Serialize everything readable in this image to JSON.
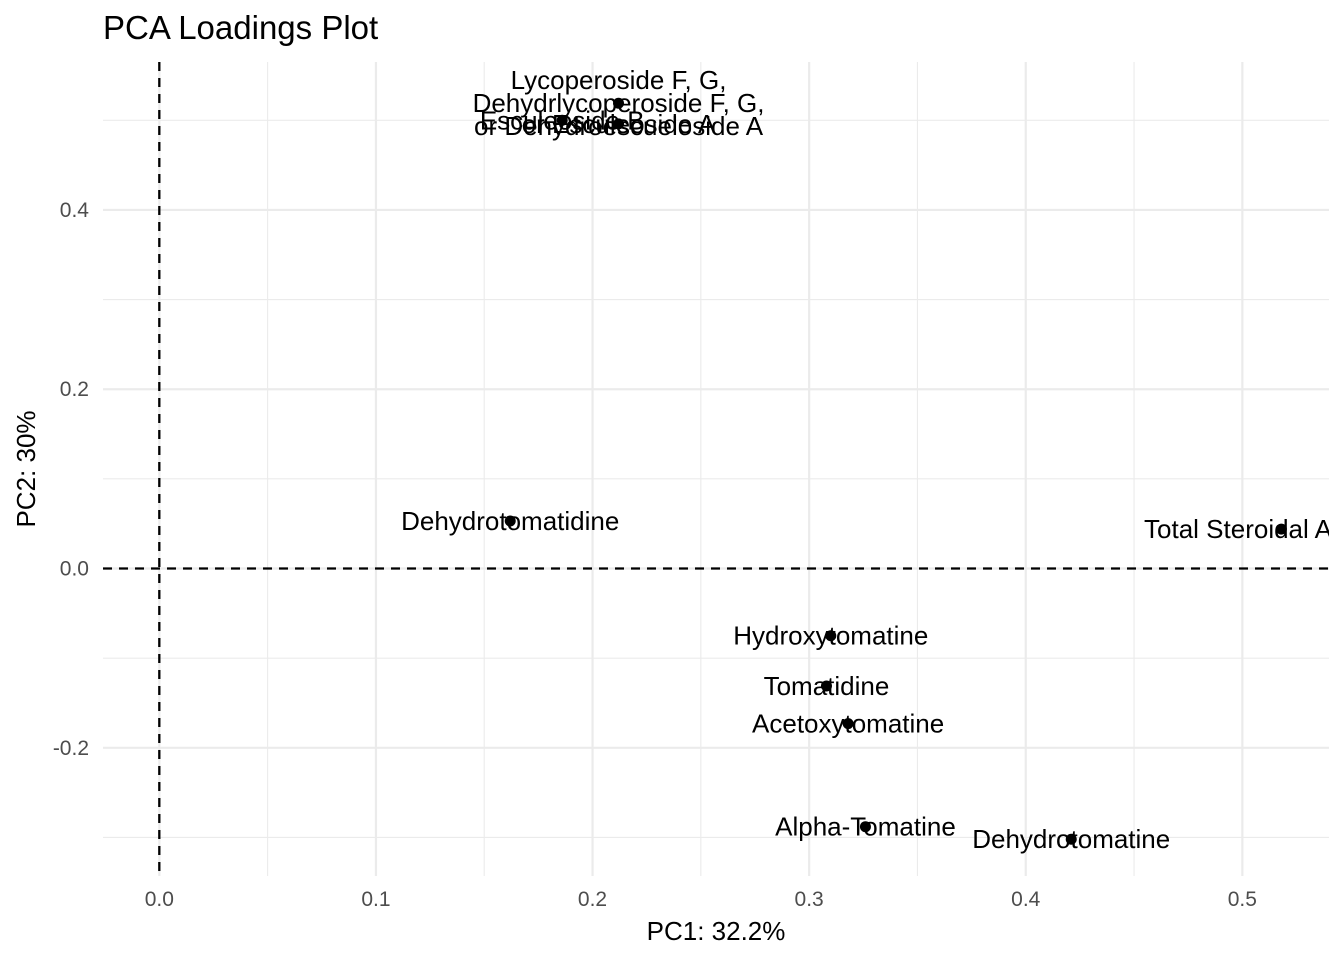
{
  "chart_data": {
    "type": "scatter",
    "title": "PCA Loadings Plot",
    "xlabel": "PC1: 32.2%",
    "ylabel": "PC2: 30%",
    "xlim": [
      -0.026,
      0.54
    ],
    "ylim": [
      -0.343,
      0.565
    ],
    "x_ticks": [
      0.0,
      0.1,
      0.2,
      0.3,
      0.4,
      0.5
    ],
    "x_tick_labels": [
      "0.0",
      "0.1",
      "0.2",
      "0.3",
      "0.4",
      "0.5"
    ],
    "y_ticks": [
      -0.2,
      0.0,
      0.2,
      0.4
    ],
    "y_tick_labels": [
      "-0.2",
      "0.0",
      "0.2",
      "0.4"
    ],
    "x_minor": [
      0.05,
      0.15,
      0.25,
      0.35,
      0.45
    ],
    "y_minor": [
      -0.3,
      -0.1,
      0.1,
      0.3,
      0.5
    ],
    "grid": true,
    "reference_lines": {
      "x": 0.0,
      "y": 0.0,
      "style": "dashed"
    },
    "points": [
      {
        "label": "Lycoperoside F, G,\nDehydrlycoperoside F, G,\nor Dehydroescueloside A",
        "x": 0.212,
        "y": 0.519
      },
      {
        "label": "Esculeoside B",
        "x": 0.186,
        "y": 0.5
      },
      {
        "label": "or Esculeoside A",
        "x": 0.212,
        "y": 0.496
      },
      {
        "label": "Dehydrotomatidine",
        "x": 0.162,
        "y": 0.053
      },
      {
        "label": "Total Steroidal Alkaloids",
        "x": 0.518,
        "y": 0.044
      },
      {
        "label": "Hydroxytomatine",
        "x": 0.31,
        "y": -0.075
      },
      {
        "label": "Tomatidine",
        "x": 0.308,
        "y": -0.131
      },
      {
        "label": "Acetoxytomatine",
        "x": 0.318,
        "y": -0.173
      },
      {
        "label": "Alpha-Tomatine",
        "x": 0.326,
        "y": -0.288
      },
      {
        "label": "Dehydrotomatine",
        "x": 0.421,
        "y": -0.302
      }
    ],
    "colors": {
      "grid": "#ebebeb",
      "point": "#000000",
      "ref_line": "#000000",
      "tick": "#4d4d4d"
    }
  }
}
